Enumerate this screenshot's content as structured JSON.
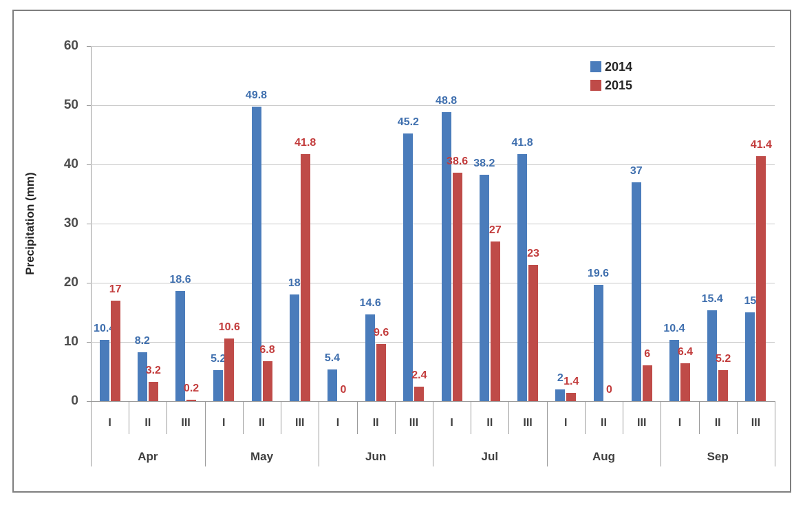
{
  "chart_data": {
    "type": "bar",
    "title": "",
    "ylabel": "Precipitation (mm)",
    "ylim": [
      0,
      60
    ],
    "yticks": [
      0,
      10,
      20,
      30,
      40,
      50,
      60
    ],
    "grid": true,
    "legend_position": "top-right",
    "months": [
      "Apr",
      "May",
      "Jun",
      "Jul",
      "Aug",
      "Sep"
    ],
    "periods": [
      "I",
      "II",
      "III"
    ],
    "series": [
      {
        "name": "2014",
        "color": "#4a7cbb",
        "label_color": "#3f6fae",
        "values": [
          10.4,
          8.2,
          18.6,
          5.2,
          49.8,
          18,
          5.4,
          14.6,
          45.2,
          48.8,
          38.2,
          41.8,
          2,
          19.6,
          37,
          10.4,
          15.4,
          15
        ]
      },
      {
        "name": "2015",
        "color": "#bf4b48",
        "label_color": "#c23b3b",
        "values": [
          17,
          3.2,
          0.2,
          10.6,
          6.8,
          41.8,
          0,
          9.6,
          2.4,
          38.6,
          27,
          23,
          1.4,
          0,
          6,
          6.4,
          5.2,
          41.4
        ]
      }
    ]
  }
}
